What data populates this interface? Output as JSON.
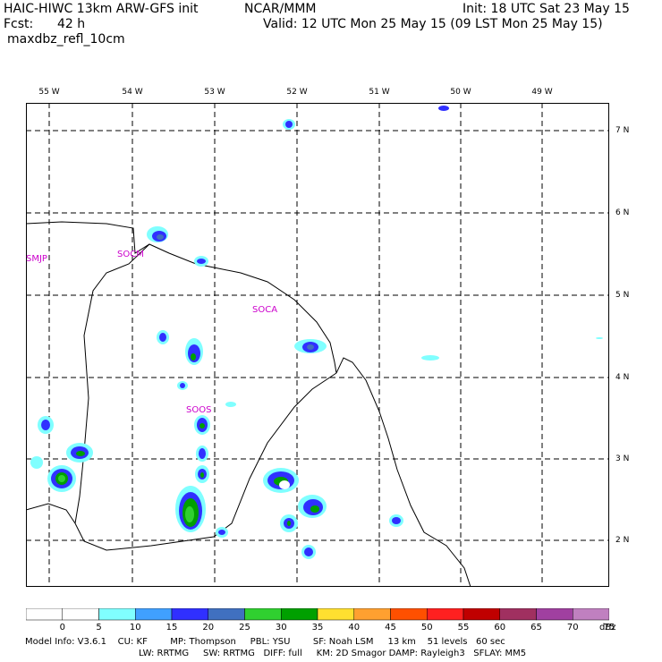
{
  "header": {
    "model": "HAIC-HIWC 13km ARW-GFS init",
    "org": "NCAR/MMM",
    "init": "Init: 18 UTC Sat 23 May 15",
    "fcst_label": "Fcst:",
    "fcst_value": "42 h",
    "valid": "Valid: 12 UTC Mon 25 May 15 (09 LST Mon 25 May 15)",
    "field": "maxdbz_refl_10cm"
  },
  "map": {
    "lon_labels": [
      "55 W",
      "54 W",
      "53 W",
      "52 W",
      "51 W",
      "50 W",
      "49 W"
    ],
    "lat_labels": [
      "7 N",
      "6 N",
      "5 N",
      "4 N",
      "3 N",
      "2 N"
    ],
    "stations": [
      "SMJP",
      "SOCM",
      "SOCA",
      "SOOS"
    ],
    "station_color": "#cc00cc"
  },
  "colorbar": {
    "ticks": [
      "0",
      "5",
      "10",
      "15",
      "20",
      "25",
      "30",
      "35",
      "40",
      "45",
      "50",
      "55",
      "60",
      "65",
      "70",
      "75"
    ],
    "unit": "dBz",
    "colors": [
      "#ffffff",
      "#ffffff",
      "#80ffff",
      "#40a0ff",
      "#3030ff",
      "#4070c0",
      "#30d030",
      "#00a000",
      "#ffe030",
      "#ffa030",
      "#ff5000",
      "#ff2020",
      "#c00000",
      "#a03060",
      "#a040a0",
      "#c080c0"
    ]
  },
  "footer": {
    "line1": "Model Info: V3.6.1    CU: KF        MP: Thompson     PBL: YSU        SF: Noah LSM     13 km    51 levels   60 sec",
    "line2": "LW: RRTMG     SW: RRTMG   DIFF: full     KM: 2D Smagor DAMP: Rayleigh3   SFLAY: MM5"
  }
}
